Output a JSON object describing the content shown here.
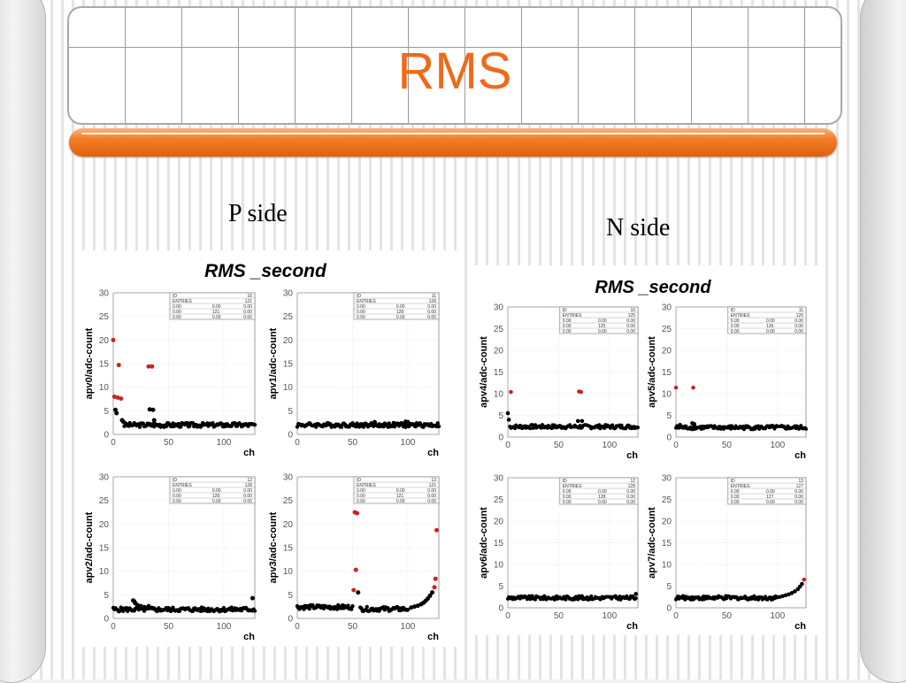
{
  "slide": {
    "title": "RMS"
  },
  "labels": {
    "p_side": "P side",
    "n_side": "N side"
  },
  "colors": {
    "accent": "#ee6a1a",
    "good": "#000000",
    "bad": "#cc2222"
  },
  "panels": [
    {
      "id": "p",
      "title": "RMS _second"
    },
    {
      "id": "n",
      "title": "RMS _second"
    }
  ],
  "chart_data": [
    {
      "type": "scatter",
      "panel": "p",
      "ylabel": "apv0/adc-count",
      "xlabel": "ch",
      "xlim": [
        0,
        128
      ],
      "ylim": [
        0,
        30
      ],
      "xticks": [
        0,
        50,
        100
      ],
      "yticks": [
        0,
        5,
        10,
        15,
        20,
        25,
        30
      ],
      "stats": [
        [
          "ID",
          "",
          "10"
        ],
        [
          "ENTRIES",
          "",
          "121"
        ],
        [
          "0.00",
          "0.00",
          "0.00"
        ],
        [
          "0.00",
          "121.",
          "0.00"
        ],
        [
          "0.00",
          "0.00",
          "0.00"
        ]
      ],
      "base": [
        {
          "from": 10,
          "to": 128,
          "y": 2.0
        }
      ],
      "points": [
        [
          1,
          8.0,
          "r"
        ],
        [
          2,
          5.2,
          "k"
        ],
        [
          3,
          4.5,
          "k"
        ],
        [
          4,
          7.8,
          "r"
        ],
        [
          5,
          14.7,
          "r"
        ],
        [
          7,
          7.6,
          "r"
        ],
        [
          8,
          3.0,
          "k"
        ],
        [
          9,
          2.7,
          "k"
        ],
        [
          32,
          14.4,
          "r"
        ],
        [
          33,
          5.3,
          "k"
        ],
        [
          35,
          14.4,
          "r"
        ],
        [
          36,
          5.2,
          "k"
        ],
        [
          37,
          3.0,
          "k"
        ],
        [
          0,
          20.0,
          "r"
        ]
      ]
    },
    {
      "type": "scatter",
      "panel": "p",
      "ylabel": "apv1/adc-count",
      "xlabel": "ch",
      "xlim": [
        0,
        128
      ],
      "ylim": [
        0,
        30
      ],
      "xticks": [
        0,
        50,
        100
      ],
      "yticks": [
        0,
        5,
        10,
        15,
        20,
        25,
        30
      ],
      "stats": [
        [
          "ID",
          "",
          "11"
        ],
        [
          "ENTRIES",
          "",
          "128"
        ],
        [
          "0.00",
          "0.00",
          "0.00"
        ],
        [
          "0.00",
          "128.",
          "0.00"
        ],
        [
          "0.00",
          "0.00",
          "0.00"
        ]
      ],
      "base": [
        {
          "from": 0,
          "to": 128,
          "y": 2.0
        }
      ],
      "points": [
        [
          70,
          2.6,
          "k"
        ],
        [
          98,
          2.7,
          "k"
        ],
        [
          100,
          2.6,
          "k"
        ]
      ]
    },
    {
      "type": "scatter",
      "panel": "p",
      "ylabel": "apv2/adc-count",
      "xlabel": "ch",
      "xlim": [
        0,
        128
      ],
      "ylim": [
        0,
        30
      ],
      "xticks": [
        0,
        50,
        100
      ],
      "yticks": [
        0,
        5,
        10,
        15,
        20,
        25,
        30
      ],
      "stats": [
        [
          "ID",
          "",
          "12"
        ],
        [
          "ENTRIES",
          "",
          "128"
        ],
        [
          "0.00",
          "0.00",
          "0.00"
        ],
        [
          "0.00",
          "128.",
          "0.00"
        ],
        [
          "0.00",
          "0.00",
          "0.00"
        ]
      ],
      "base": [
        {
          "from": 0,
          "to": 128,
          "y": 1.9
        }
      ],
      "points": [
        [
          18,
          3.8,
          "k"
        ],
        [
          19,
          3.6,
          "k"
        ],
        [
          20,
          3.2,
          "k"
        ],
        [
          22,
          2.8,
          "k"
        ],
        [
          25,
          2.6,
          "k"
        ],
        [
          28,
          2.4,
          "k"
        ],
        [
          32,
          2.6,
          "k"
        ],
        [
          126,
          4.3,
          "k"
        ]
      ]
    },
    {
      "type": "scatter",
      "panel": "p",
      "ylabel": "apv3/adc-count",
      "xlabel": "ch",
      "xlim": [
        0,
        128
      ],
      "ylim": [
        0,
        30
      ],
      "xticks": [
        0,
        50,
        100
      ],
      "yticks": [
        0,
        5,
        10,
        15,
        20,
        25,
        30
      ],
      "stats": [
        [
          "ID",
          "",
          "13"
        ],
        [
          "ENTRIES",
          "",
          "121"
        ],
        [
          "0.00",
          "0.00",
          "0.00"
        ],
        [
          "0.00",
          "121.",
          "0.00"
        ],
        [
          "0.00",
          "0.00",
          "0.00"
        ]
      ],
      "base": [
        {
          "from": 0,
          "to": 50,
          "y": 2.4
        },
        {
          "from": 57,
          "to": 100,
          "y": 2.0
        }
      ],
      "points": [
        [
          52,
          22.5,
          "r"
        ],
        [
          54,
          22.3,
          "r"
        ],
        [
          53,
          10.3,
          "r"
        ],
        [
          51,
          6.0,
          "r"
        ],
        [
          55,
          5.5,
          "k"
        ],
        [
          103,
          2.3,
          "k"
        ],
        [
          106,
          2.5,
          "k"
        ],
        [
          109,
          2.7,
          "k"
        ],
        [
          112,
          3.0,
          "k"
        ],
        [
          114,
          3.3,
          "k"
        ],
        [
          116,
          3.7,
          "k"
        ],
        [
          118,
          4.2,
          "k"
        ],
        [
          120,
          4.8,
          "k"
        ],
        [
          122,
          5.5,
          "k"
        ],
        [
          124,
          6.6,
          "r"
        ],
        [
          125,
          8.4,
          "r"
        ],
        [
          126,
          18.7,
          "r"
        ]
      ]
    },
    {
      "type": "scatter",
      "panel": "n",
      "ylabel": "apv4/adc-count",
      "xlabel": "ch",
      "xlim": [
        0,
        128
      ],
      "ylim": [
        0,
        30
      ],
      "xticks": [
        0,
        50,
        100
      ],
      "yticks": [
        0,
        5,
        10,
        15,
        20,
        25,
        30
      ],
      "stats": [
        [
          "ID",
          "",
          "10"
        ],
        [
          "ENTRIES",
          "",
          "125"
        ],
        [
          "0.00",
          "0.00",
          "0.00"
        ],
        [
          "0.00",
          "125.",
          "0.00"
        ],
        [
          "0.00",
          "0.00",
          "0.00"
        ]
      ],
      "base": [
        {
          "from": 2,
          "to": 128,
          "y": 2.4
        }
      ],
      "points": [
        [
          0,
          5.5,
          "k"
        ],
        [
          1,
          4.0,
          "k"
        ],
        [
          3,
          10.4,
          "r"
        ],
        [
          70,
          10.5,
          "r"
        ],
        [
          72,
          10.4,
          "r"
        ],
        [
          69,
          3.7,
          "k"
        ],
        [
          73,
          3.7,
          "k"
        ]
      ]
    },
    {
      "type": "scatter",
      "panel": "n",
      "ylabel": "apv5/adc-count",
      "xlabel": "ch",
      "xlim": [
        0,
        128
      ],
      "ylim": [
        0,
        30
      ],
      "xticks": [
        0,
        50,
        100
      ],
      "yticks": [
        0,
        5,
        10,
        15,
        20,
        25,
        30
      ],
      "stats": [
        [
          "ID",
          "",
          "11"
        ],
        [
          "ENTRIES",
          "",
          "126"
        ],
        [
          "0.00",
          "0.00",
          "0.00"
        ],
        [
          "0.00",
          "126.",
          "0.00"
        ],
        [
          "0.00",
          "0.00",
          "0.00"
        ]
      ],
      "base": [
        {
          "from": 0,
          "to": 128,
          "y": 2.2
        }
      ],
      "points": [
        [
          0,
          11.4,
          "r"
        ],
        [
          17,
          11.4,
          "r"
        ],
        [
          16,
          3.2,
          "k"
        ],
        [
          18,
          3.0,
          "k"
        ],
        [
          4,
          2.8,
          "k"
        ]
      ]
    },
    {
      "type": "scatter",
      "panel": "n",
      "ylabel": "apv6/adc-count",
      "xlabel": "ch",
      "xlim": [
        0,
        128
      ],
      "ylim": [
        0,
        30
      ],
      "xticks": [
        0,
        50,
        100
      ],
      "yticks": [
        0,
        5,
        10,
        15,
        20,
        25,
        30
      ],
      "stats": [
        [
          "ID",
          "",
          "12"
        ],
        [
          "ENTRIES",
          "",
          "128"
        ],
        [
          "0.00",
          "0.00",
          "0.00"
        ],
        [
          "0.00",
          "128.",
          "0.00"
        ],
        [
          "0.00",
          "0.00",
          "0.00"
        ]
      ],
      "base": [
        {
          "from": 0,
          "to": 126,
          "y": 2.3
        }
      ],
      "points": [
        [
          126,
          3.2,
          "k"
        ]
      ]
    },
    {
      "type": "scatter",
      "panel": "n",
      "ylabel": "apv7/adc-count",
      "xlabel": "ch",
      "xlim": [
        0,
        128
      ],
      "ylim": [
        0,
        30
      ],
      "xticks": [
        0,
        50,
        100
      ],
      "yticks": [
        0,
        5,
        10,
        15,
        20,
        25,
        30
      ],
      "stats": [
        [
          "ID",
          "",
          "13"
        ],
        [
          "ENTRIES",
          "",
          "127"
        ],
        [
          "0.00",
          "0.00",
          "0.00"
        ],
        [
          "0.00",
          "127.",
          "0.00"
        ],
        [
          "0.00",
          "0.00",
          "0.00"
        ]
      ],
      "base": [
        {
          "from": 0,
          "to": 100,
          "y": 2.3
        }
      ],
      "points": [
        [
          102,
          2.5,
          "k"
        ],
        [
          105,
          2.7,
          "k"
        ],
        [
          108,
          2.9,
          "k"
        ],
        [
          111,
          3.1,
          "k"
        ],
        [
          114,
          3.4,
          "k"
        ],
        [
          117,
          3.8,
          "k"
        ],
        [
          120,
          4.3,
          "k"
        ],
        [
          122,
          4.9,
          "k"
        ],
        [
          124,
          5.5,
          "k"
        ],
        [
          126,
          6.5,
          "r"
        ]
      ]
    }
  ]
}
